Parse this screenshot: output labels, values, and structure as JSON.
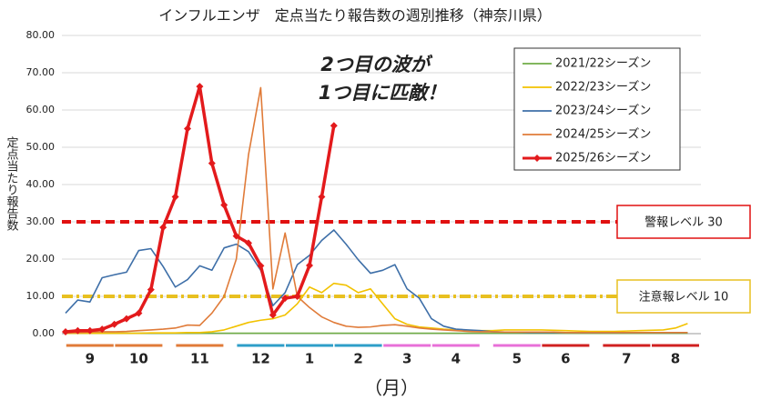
{
  "chart_data": {
    "type": "line",
    "title": "インフルエンザ　定点当たり報告数の週別推移（神奈川県）",
    "y_label": "定点当たり報告数",
    "x_label": "（月）",
    "annotation": [
      "2つ目の波が",
      "1つ目に匹敵！"
    ],
    "categories": [
      null,
      null,
      "9",
      null,
      null,
      null,
      "10",
      null,
      null,
      null,
      null,
      "11",
      null,
      null,
      null,
      null,
      "12",
      null,
      null,
      null,
      "1",
      null,
      null,
      null,
      "2",
      null,
      null,
      null,
      "3",
      null,
      null,
      null,
      "4",
      null,
      null,
      null,
      null,
      "5",
      null,
      null,
      null,
      "6",
      null,
      null,
      null,
      null,
      "7",
      null,
      null,
      null,
      "8",
      null
    ],
    "ylim": [
      0,
      80
    ],
    "yticks": [
      {
        "value": 0,
        "label": "0.00"
      },
      {
        "value": 10,
        "label": "10.00"
      },
      {
        "value": 20,
        "label": "20.00"
      },
      {
        "value": 30,
        "label": "30.00"
      },
      {
        "value": 40,
        "label": "40.00"
      },
      {
        "value": 50,
        "label": "50.00"
      },
      {
        "value": 60,
        "label": "60.00"
      },
      {
        "value": 70,
        "label": "70.00"
      },
      {
        "value": 80,
        "label": "80.00"
      }
    ],
    "grid": true,
    "legend_position": "upper right",
    "reference_lines": [
      {
        "value": 30,
        "label": "警報レベル 30",
        "color": "#e01010"
      },
      {
        "value": 10,
        "label": "注意報レベル 10",
        "color": "#e8c020"
      }
    ],
    "series": [
      {
        "name": "2021/22シーズン",
        "color": "#70ad47",
        "values": [
          0.1,
          0.1,
          0.1,
          0.1,
          0.1,
          0.1,
          0.1,
          0.1,
          0.1,
          0.1,
          0.1,
          0.1,
          0.1,
          0.1,
          0.1,
          0.1,
          0.1,
          0.1,
          0.1,
          0.1,
          0.1,
          0.1,
          0.1,
          0.1,
          0.1,
          0.1,
          0.1,
          0.1,
          0.1,
          0.1,
          0.1,
          0.1,
          0.1,
          0.1,
          0.1,
          0.1,
          0.1,
          0.1,
          0.1,
          0.1,
          0.1,
          0.1,
          0.1,
          0.1,
          0.1,
          0.1,
          0.1,
          0.1,
          0.1,
          0.1,
          0.1,
          0.1
        ]
      },
      {
        "name": "2022/23シーズン",
        "color": "#f2c200",
        "values": [
          0.1,
          0.1,
          0.1,
          0.1,
          0.1,
          0.1,
          0.1,
          0.2,
          0.2,
          0.2,
          0.3,
          0.3,
          0.5,
          1,
          2,
          3,
          3.6,
          4,
          5,
          8,
          12.5,
          11,
          13.5,
          13,
          11,
          12,
          8,
          4,
          2.5,
          1.8,
          1.5,
          1.2,
          1,
          0.8,
          0.8,
          0.8,
          1,
          1,
          1,
          1,
          0.9,
          0.8,
          0.7,
          0.6,
          0.6,
          0.6,
          0.7,
          0.8,
          0.9,
          1,
          1.5,
          2.7
        ]
      },
      {
        "name": "2023/24シーズン",
        "color": "#3e6fa8",
        "values": [
          5.5,
          9,
          8.5,
          15,
          15.8,
          16.5,
          22.3,
          22.8,
          18,
          12.5,
          14.5,
          18.2,
          17,
          23,
          24,
          22,
          17,
          7.5,
          11,
          18.5,
          21,
          25,
          27.8,
          24,
          19.8,
          16.2,
          17,
          18.5,
          12,
          9.5,
          4,
          2,
          1.2,
          1,
          0.8,
          0.5,
          0.4,
          0.4,
          0.3,
          0.3,
          0.3,
          0.3,
          0.3,
          0.3,
          0.3,
          0.3,
          0.3,
          0.3,
          0.3,
          0.3,
          0.3,
          0.3
        ]
      },
      {
        "name": "2024/25シーズン",
        "color": "#e07b39",
        "values": [
          0.2,
          0.3,
          0.4,
          0.5,
          0.5,
          0.6,
          0.8,
          1,
          1.2,
          1.5,
          2.3,
          2.2,
          5.5,
          10,
          20,
          48,
          66,
          12,
          27,
          10,
          7,
          4.5,
          3,
          2,
          1.7,
          1.8,
          2.2,
          2.4,
          2,
          1.5,
          1.2,
          1,
          0.8,
          0.6,
          0.5,
          0.5,
          0.4,
          0.4,
          0.4,
          0.4,
          0.4,
          0.3,
          0.3,
          0.3,
          0.3,
          0.3,
          0.3,
          0.3,
          0.3,
          0.3,
          0.3,
          0.3
        ]
      },
      {
        "name": "2025/26シーズン",
        "color": "#e31a1c",
        "values": [
          0.5,
          0.8,
          0.8,
          1.2,
          2.5,
          4,
          5.5,
          11.8,
          28.5,
          36.7,
          55,
          66.3,
          45.7,
          34.5,
          26.2,
          24.3,
          18.2,
          5,
          9.5,
          10,
          18.3,
          36.7,
          55.8,
          null,
          null,
          null,
          null,
          null,
          null,
          null,
          null,
          null,
          null,
          null,
          null,
          null,
          null,
          null,
          null,
          null,
          null,
          null,
          null,
          null,
          null,
          null,
          null,
          null,
          null,
          null,
          null,
          null
        ]
      }
    ]
  }
}
